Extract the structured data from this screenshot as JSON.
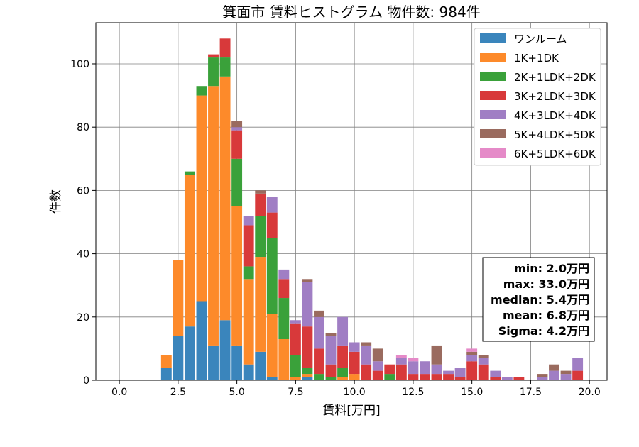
{
  "chart_data": {
    "type": "bar",
    "stacked": true,
    "title": "箕面市 賃料ヒストグラム 物件数: 984件",
    "xlabel": "賃料[万円]",
    "ylabel": "件数",
    "xlim": [
      -1.0,
      20.75
    ],
    "ylim": [
      0,
      113
    ],
    "bin_width": 0.5,
    "xticks": [
      0.0,
      2.5,
      5.0,
      7.5,
      10.0,
      12.5,
      15.0,
      17.5,
      20.0
    ],
    "xtick_labels": [
      "0.0",
      "2.5",
      "5.0",
      "7.5",
      "10.0",
      "12.5",
      "15.0",
      "17.5",
      "20.0"
    ],
    "yticks": [
      0,
      20,
      40,
      60,
      80,
      100
    ],
    "ytick_labels": [
      "0",
      "20",
      "40",
      "60",
      "80",
      "100"
    ],
    "grid": true,
    "legend_position": "top-right",
    "colors": {
      "ワンルーム": "#3a85bc",
      "1K+1DK": "#fd8a2a",
      "2K+1LDK+2DK": "#3aa13a",
      "3K+2LDK+3DK": "#d8393a",
      "4K+3LDK+4DK": "#a07ec4",
      "5K+4LDK+5DK": "#9a6b5f",
      "6K+5LDK+6DK": "#e58ac8"
    },
    "x": [
      2.0,
      2.5,
      3.0,
      3.5,
      4.0,
      4.5,
      5.0,
      5.5,
      6.0,
      6.5,
      7.0,
      7.5,
      8.0,
      8.5,
      9.0,
      9.5,
      10.0,
      10.5,
      11.0,
      11.5,
      12.0,
      12.5,
      13.0,
      13.5,
      14.0,
      14.5,
      15.0,
      15.5,
      16.0,
      16.5,
      17.0,
      17.5,
      18.0,
      18.5,
      19.0,
      19.5
    ],
    "series": [
      {
        "name": "ワンルーム",
        "values": [
          4,
          14,
          17,
          25,
          11,
          19,
          11,
          5,
          9,
          1,
          0,
          0,
          1,
          0,
          0,
          0,
          0,
          0,
          0,
          0,
          0,
          0,
          0,
          0,
          0,
          0,
          0,
          0,
          0,
          0,
          0,
          0,
          0,
          0,
          0,
          0
        ]
      },
      {
        "name": "1K+1DK",
        "values": [
          4,
          24,
          48,
          65,
          82,
          77,
          44,
          27,
          30,
          20,
          13,
          1,
          1,
          0,
          0,
          1,
          2,
          0,
          0,
          0,
          0,
          0,
          0,
          0,
          0,
          0,
          0,
          0,
          0,
          0,
          0,
          0,
          0,
          0,
          0,
          0
        ]
      },
      {
        "name": "2K+1LDK+2DK",
        "values": [
          0,
          0,
          1,
          3,
          9,
          6,
          15,
          4,
          13,
          24,
          13,
          7,
          2,
          2,
          1,
          3,
          0,
          0,
          0,
          2,
          0,
          0,
          0,
          0,
          0,
          0,
          0,
          0,
          0,
          0,
          0,
          0,
          0,
          0,
          0,
          0
        ]
      },
      {
        "name": "3K+2LDK+3DK",
        "values": [
          0,
          0,
          0,
          0,
          1,
          6,
          9,
          13,
          7,
          8,
          6,
          10,
          13,
          8,
          4,
          7,
          7,
          5,
          3,
          3,
          5,
          2,
          2,
          2,
          2,
          1,
          6,
          5,
          1,
          0,
          1,
          0,
          0,
          0,
          0,
          3
        ]
      },
      {
        "name": "4K+3LDK+4DK",
        "values": [
          0,
          0,
          0,
          0,
          0,
          0,
          1,
          3,
          0,
          5,
          3,
          1,
          14,
          10,
          9,
          9,
          3,
          6,
          3,
          0,
          2,
          4,
          4,
          3,
          1,
          3,
          2,
          2,
          2,
          1,
          0,
          0,
          1,
          3,
          2,
          4
        ]
      },
      {
        "name": "5K+4LDK+5DK",
        "values": [
          0,
          0,
          0,
          0,
          0,
          0,
          2,
          0,
          1,
          0,
          0,
          0,
          1,
          2,
          1,
          0,
          0,
          1,
          4,
          0,
          0,
          0,
          0,
          6,
          0,
          0,
          1,
          1,
          0,
          0,
          0,
          0,
          1,
          2,
          1,
          0
        ]
      },
      {
        "name": "6K+5LDK+6DK",
        "values": [
          0,
          0,
          0,
          0,
          0,
          0,
          0,
          0,
          0,
          0,
          0,
          0,
          0,
          0,
          0,
          0,
          0,
          0,
          0,
          0,
          1,
          1,
          0,
          0,
          0,
          0,
          1,
          0,
          0,
          0,
          0,
          0,
          0,
          0,
          0,
          0
        ]
      }
    ],
    "stats": [
      "min: 2.0万円",
      "max: 33.0万円",
      "median: 5.4万円",
      "mean: 6.8万円",
      "Sigma: 4.2万円"
    ]
  }
}
